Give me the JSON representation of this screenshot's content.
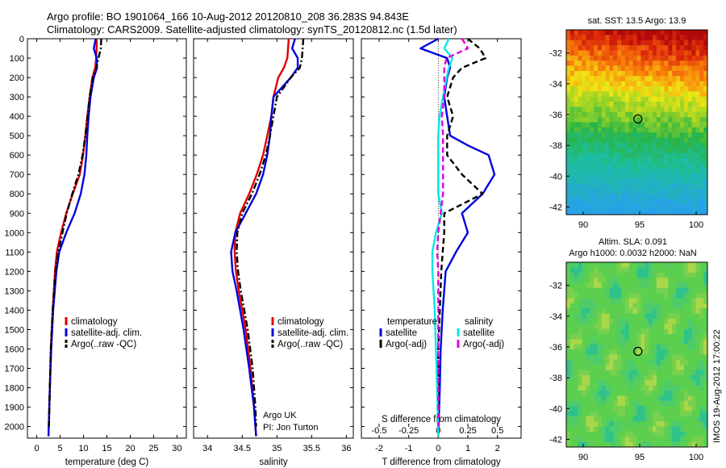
{
  "header": {
    "line1": "Argo profile: BO 1901064_166 10-Aug-2012 20120810_208 36.283S 94.843E",
    "line2": "Climatology: CARS2009. Satellite-adjusted climatology: synTS_20120812.nc (1.5d later)"
  },
  "colors": {
    "climatology": "#e00000",
    "satellite": "#0000dd",
    "argo": "#000000",
    "sal_satellite": "#00e8e8",
    "sal_argo": "#e000e0"
  },
  "depth_ticks": [
    0,
    100,
    200,
    300,
    400,
    500,
    600,
    700,
    800,
    900,
    1000,
    1100,
    1200,
    1300,
    1400,
    1500,
    1600,
    1700,
    1800,
    1900,
    2000
  ],
  "chart_data": [
    {
      "id": "temperature",
      "type": "line",
      "xlabel": "temperature (deg C)",
      "ylabel": "",
      "xlim": [
        -2,
        32
      ],
      "ylim": [
        2060,
        0
      ],
      "xticks": [
        0,
        5,
        10,
        15,
        20,
        25,
        30
      ],
      "legend": {
        "placement": "center-left",
        "entries": [
          "climatology",
          "satellite-adj. clim.",
          "Argo(..raw -QC)"
        ]
      },
      "series": [
        {
          "name": "climatology",
          "color_key": "climatology",
          "dash": "solid",
          "depth": [
            0,
            50,
            100,
            150,
            200,
            300,
            400,
            500,
            600,
            700,
            800,
            900,
            1000,
            1100,
            1200,
            1400,
            1600,
            1800,
            2050
          ],
          "values": [
            12.8,
            12.8,
            12.7,
            12.5,
            11.9,
            11.3,
            10.8,
            10.4,
            9.9,
            9.2,
            7.7,
            6.3,
            5.2,
            4.3,
            3.9,
            3.4,
            3.0,
            2.8,
            2.5
          ]
        },
        {
          "name": "satellite-adj. clim.",
          "color_key": "satellite",
          "dash": "solid",
          "depth": [
            0,
            50,
            100,
            150,
            200,
            300,
            400,
            500,
            600,
            700,
            800,
            900,
            1000,
            1100,
            1200,
            1400,
            1600,
            1800,
            2050
          ],
          "values": [
            12.6,
            12.2,
            12.8,
            12.9,
            12.2,
            11.5,
            11.1,
            10.8,
            10.6,
            10.2,
            9.4,
            8.1,
            6.3,
            4.8,
            4.2,
            3.5,
            3.1,
            2.8,
            2.5
          ]
        },
        {
          "name": "Argo(..raw -QC)",
          "color_key": "argo",
          "dash": "dashdot",
          "depth": [
            0,
            50,
            100,
            150,
            200,
            300,
            400,
            500,
            600,
            700,
            800,
            900,
            1000,
            1100,
            1200,
            1400,
            1600,
            1800,
            2000
          ],
          "values": [
            13.8,
            13.7,
            13.2,
            12.7,
            12.0,
            11.3,
            10.9,
            10.4,
            9.8,
            8.9,
            7.6,
            6.4,
            5.5,
            4.6,
            4.0,
            3.4,
            3.0,
            2.8,
            2.6
          ]
        }
      ]
    },
    {
      "id": "salinity",
      "type": "line",
      "xlabel": "salinity",
      "ylabel": "",
      "xlim": [
        33.8,
        36.1
      ],
      "ylim": [
        2060,
        0
      ],
      "xticks": [
        34,
        34.5,
        35,
        35.5,
        36
      ],
      "xticklabels": [
        "34",
        "34.5",
        "35",
        "35.5",
        "36"
      ],
      "legend": {
        "placement": "center-right",
        "entries": [
          "climatology",
          "satellite-adj. clim.",
          "Argo(..raw -QC)"
        ]
      },
      "annotation": [
        "Argo UK",
        "PI: Jon Turton"
      ],
      "series": [
        {
          "name": "climatology",
          "color_key": "climatology",
          "dash": "solid",
          "depth": [
            0,
            50,
            100,
            150,
            200,
            300,
            400,
            500,
            600,
            700,
            800,
            900,
            1000,
            1100,
            1200,
            1300,
            1500,
            1700,
            1900,
            2050
          ],
          "values": [
            35.17,
            35.16,
            35.15,
            35.1,
            35.02,
            34.95,
            34.92,
            34.86,
            34.8,
            34.71,
            34.6,
            34.47,
            34.4,
            34.39,
            34.41,
            34.45,
            34.55,
            34.62,
            34.67,
            34.7
          ]
        },
        {
          "name": "satellite-adj. clim.",
          "color_key": "satellite",
          "dash": "solid",
          "depth": [
            0,
            50,
            100,
            150,
            200,
            300,
            400,
            500,
            600,
            700,
            800,
            900,
            1000,
            1100,
            1200,
            1300,
            1500,
            1700,
            1900,
            2050
          ],
          "values": [
            35.26,
            35.22,
            35.3,
            35.3,
            35.2,
            34.95,
            34.92,
            34.9,
            34.86,
            34.8,
            34.7,
            34.55,
            34.4,
            34.34,
            34.36,
            34.42,
            34.52,
            34.6,
            34.67,
            34.7
          ]
        },
        {
          "name": "Argo(..raw -QC)",
          "color_key": "argo",
          "dash": "dashdot",
          "depth": [
            0,
            50,
            100,
            150,
            200,
            300,
            400,
            500,
            600,
            700,
            800,
            900,
            1000,
            1100,
            1200,
            1300,
            1500,
            1700,
            1900,
            2000
          ],
          "values": [
            35.38,
            35.37,
            35.36,
            35.33,
            35.2,
            35.0,
            34.95,
            34.9,
            34.84,
            34.75,
            34.64,
            34.5,
            34.43,
            34.42,
            34.44,
            34.48,
            34.58,
            34.65,
            34.69,
            34.7
          ]
        }
      ]
    },
    {
      "id": "difference",
      "type": "line",
      "xlabel": "T difference from climatology",
      "x2label": "S difference from climatology",
      "xlim": [
        -2.6,
        2.8
      ],
      "x2lim": [
        -0.65,
        0.7
      ],
      "ylim": [
        2060,
        0
      ],
      "xticks": [
        -2,
        -1,
        0,
        1,
        2
      ],
      "x2ticks": [
        -0.5,
        -0.25,
        0,
        0.25,
        0.5
      ],
      "x2ticklabels": [
        "-0.5",
        "-0.25",
        "0",
        "0.25",
        "0.5"
      ],
      "legend": {
        "placement": "lower-center",
        "groups": [
          {
            "header": "temperature",
            "entries": [
              "satellite",
              "Argo(-adj)"
            ]
          },
          {
            "header": "salinity",
            "entries": [
              "satellite",
              "Argo(-adj)"
            ]
          }
        ]
      },
      "series": [
        {
          "name": "satellite",
          "group": "temperature",
          "color_key": "satellite",
          "dash": "solid",
          "axis": "T",
          "depth": [
            0,
            50,
            100,
            150,
            200,
            300,
            400,
            500,
            550,
            600,
            700,
            800,
            900,
            1000,
            1100,
            1200,
            1400,
            1600,
            1800,
            2050
          ],
          "values": [
            0.0,
            -0.6,
            0.3,
            0.4,
            0.3,
            0.2,
            0.3,
            0.4,
            1.0,
            1.7,
            1.9,
            1.5,
            0.8,
            1.0,
            0.6,
            0.25,
            0.15,
            0.08,
            0.05,
            0.0
          ]
        },
        {
          "name": "Argo(-adj)",
          "group": "temperature",
          "color_key": "argo",
          "dash": "dashed",
          "axis": "T",
          "depth": [
            0,
            50,
            100,
            150,
            200,
            300,
            400,
            500,
            600,
            700,
            800,
            900,
            1000,
            1100,
            1200,
            1400,
            1600,
            1800,
            2000
          ],
          "values": [
            1.0,
            1.4,
            1.6,
            0.8,
            0.5,
            0.3,
            0.5,
            0.3,
            0.3,
            0.8,
            1.5,
            0.2,
            0.2,
            0.15,
            0.1,
            0.05,
            0.0,
            0.0,
            0.0
          ]
        },
        {
          "name": "satellite",
          "group": "salinity",
          "color_key": "sal_satellite",
          "dash": "solid",
          "axis": "S",
          "depth": [
            0,
            50,
            100,
            150,
            200,
            300,
            400,
            500,
            600,
            700,
            800,
            900,
            1000,
            1100,
            1200,
            1400,
            1600,
            1800,
            2050
          ],
          "values": [
            0.09,
            0.05,
            0.12,
            0.09,
            0.07,
            0.04,
            0.01,
            0.0,
            0.0,
            0.0,
            0.0,
            0.03,
            -0.02,
            -0.05,
            -0.05,
            -0.03,
            -0.02,
            -0.01,
            0.0
          ]
        },
        {
          "name": "Argo(-adj)",
          "group": "salinity",
          "color_key": "sal_argo",
          "dash": "dashed",
          "axis": "S",
          "depth": [
            0,
            50,
            100,
            150,
            200,
            300,
            400,
            500,
            600,
            700,
            800,
            900,
            1000,
            1100,
            1200,
            1400,
            1600,
            1800,
            2000
          ],
          "values": [
            0.2,
            0.25,
            0.07,
            0.05,
            0.05,
            0.05,
            0.03,
            0.04,
            0.04,
            0.04,
            0.04,
            0.02,
            0.0,
            -0.01,
            0.0,
            0.0,
            0.0,
            0.0,
            0.0
          ]
        }
      ]
    },
    {
      "id": "sst_map",
      "type": "heatmap",
      "title": "sat. SST: 13.5 Argo: 13.9",
      "xlim": [
        88.5,
        101
      ],
      "ylim": [
        -42.5,
        -30.5
      ],
      "xticks": [
        90,
        95,
        100
      ],
      "yticks": [
        -32,
        -34,
        -36,
        -38,
        -40,
        -42
      ],
      "marker": {
        "lon": 94.843,
        "lat": -36.283
      }
    },
    {
      "id": "sla_map",
      "type": "heatmap",
      "title_lines": [
        "Altim. SLA: 0.091",
        "Argo h1000: 0.0032 h2000: NaN"
      ],
      "xlim": [
        88.5,
        101
      ],
      "ylim": [
        -42.5,
        -30.5
      ],
      "xticks": [
        90,
        95,
        100
      ],
      "yticks": [
        -32,
        -34,
        -36,
        -38,
        -40,
        -42
      ],
      "marker": {
        "lon": 94.843,
        "lat": -36.283
      },
      "side_text": "IMOS 19-Aug-2012 17:00:22"
    }
  ]
}
